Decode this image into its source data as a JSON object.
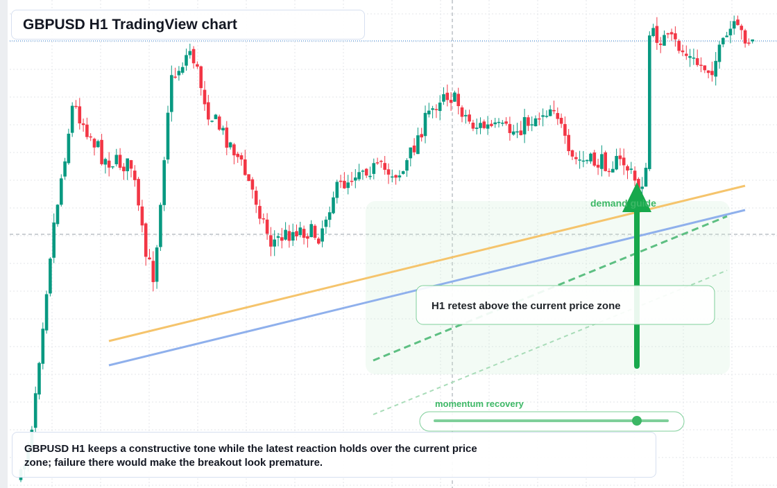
{
  "header": {
    "title": "GBPUSD H1 TradingView chart"
  },
  "annotations": {
    "demand_label": "demand guide",
    "callout": "H1 retest above the current price zone",
    "momentum_label": "momentum recovery"
  },
  "footer": {
    "note": "GBPUSD H1 keeps a constructive tone while the latest reaction holds over the current price zone; failure there would make the breakout look premature."
  }
}
